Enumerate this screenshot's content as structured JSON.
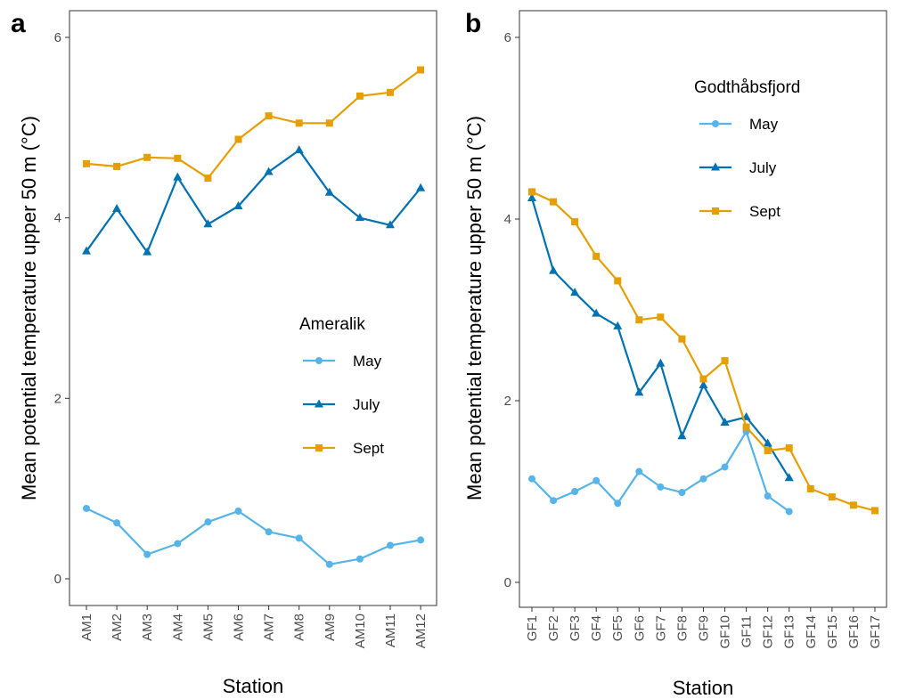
{
  "chart_data": [
    {
      "panel": "a",
      "type": "line",
      "ylabel": "Mean potential temperature upper 50 m (°C)",
      "xlabel": "Station",
      "ylim": [
        0,
        6
      ],
      "yticks": [
        0,
        2,
        4,
        6
      ],
      "grid": false,
      "legend": {
        "title": "Ameralik",
        "placement": "middle-right"
      },
      "categories": [
        "AM1",
        "AM2",
        "AM3",
        "AM4",
        "AM5",
        "AM6",
        "AM7",
        "AM8",
        "AM9",
        "AM10",
        "AM11",
        "AM12"
      ],
      "series": [
        {
          "name": "May",
          "color": "#56B4E9",
          "marker": "circle",
          "values": [
            0.78,
            0.62,
            0.27,
            0.39,
            0.63,
            0.75,
            0.52,
            0.45,
            0.16,
            0.22,
            0.37,
            0.43
          ]
        },
        {
          "name": "July",
          "color": "#0072B2",
          "marker": "triangle",
          "values": [
            3.63,
            4.1,
            3.62,
            4.45,
            3.93,
            4.13,
            4.51,
            4.75,
            4.28,
            4.0,
            3.92,
            4.33
          ]
        },
        {
          "name": "Sept",
          "color": "#E69F00",
          "marker": "square",
          "values": [
            4.6,
            4.57,
            4.67,
            4.66,
            4.44,
            4.87,
            5.13,
            5.05,
            5.05,
            5.35,
            5.39,
            5.64
          ]
        }
      ]
    },
    {
      "panel": "b",
      "type": "line",
      "ylabel": "Mean potential temperature upper 50 m (°C)",
      "xlabel": "Station",
      "ylim": [
        0,
        6
      ],
      "yticks": [
        0,
        2,
        4,
        6
      ],
      "grid": false,
      "legend": {
        "title": "Godthåbsfjord",
        "placement": "top-right"
      },
      "categories": [
        "GF1",
        "GF2",
        "GF3",
        "GF4",
        "GF5",
        "GF6",
        "GF7",
        "GF8",
        "GF9",
        "GF10",
        "GF11",
        "GF12",
        "GF13",
        "GF14",
        "GF15",
        "GF16",
        "GF17"
      ],
      "series": [
        {
          "name": "May",
          "color": "#56B4E9",
          "marker": "circle",
          "values": [
            1.14,
            0.9,
            1.0,
            1.12,
            0.87,
            1.22,
            1.05,
            0.99,
            1.14,
            1.27,
            1.66,
            0.95,
            0.78,
            null,
            null,
            null,
            null
          ]
        },
        {
          "name": "July",
          "color": "#0072B2",
          "marker": "triangle",
          "values": [
            4.23,
            3.43,
            3.19,
            2.96,
            2.82,
            2.09,
            2.41,
            1.61,
            2.17,
            1.76,
            1.82,
            1.53,
            1.15,
            null,
            null,
            null,
            null
          ]
        },
        {
          "name": "Sept",
          "color": "#E69F00",
          "marker": "square",
          "values": [
            4.3,
            4.19,
            3.97,
            3.59,
            3.32,
            2.89,
            2.92,
            2.68,
            2.24,
            2.44,
            1.71,
            1.45,
            1.48,
            1.03,
            0.94,
            0.85,
            0.79
          ]
        }
      ]
    }
  ]
}
